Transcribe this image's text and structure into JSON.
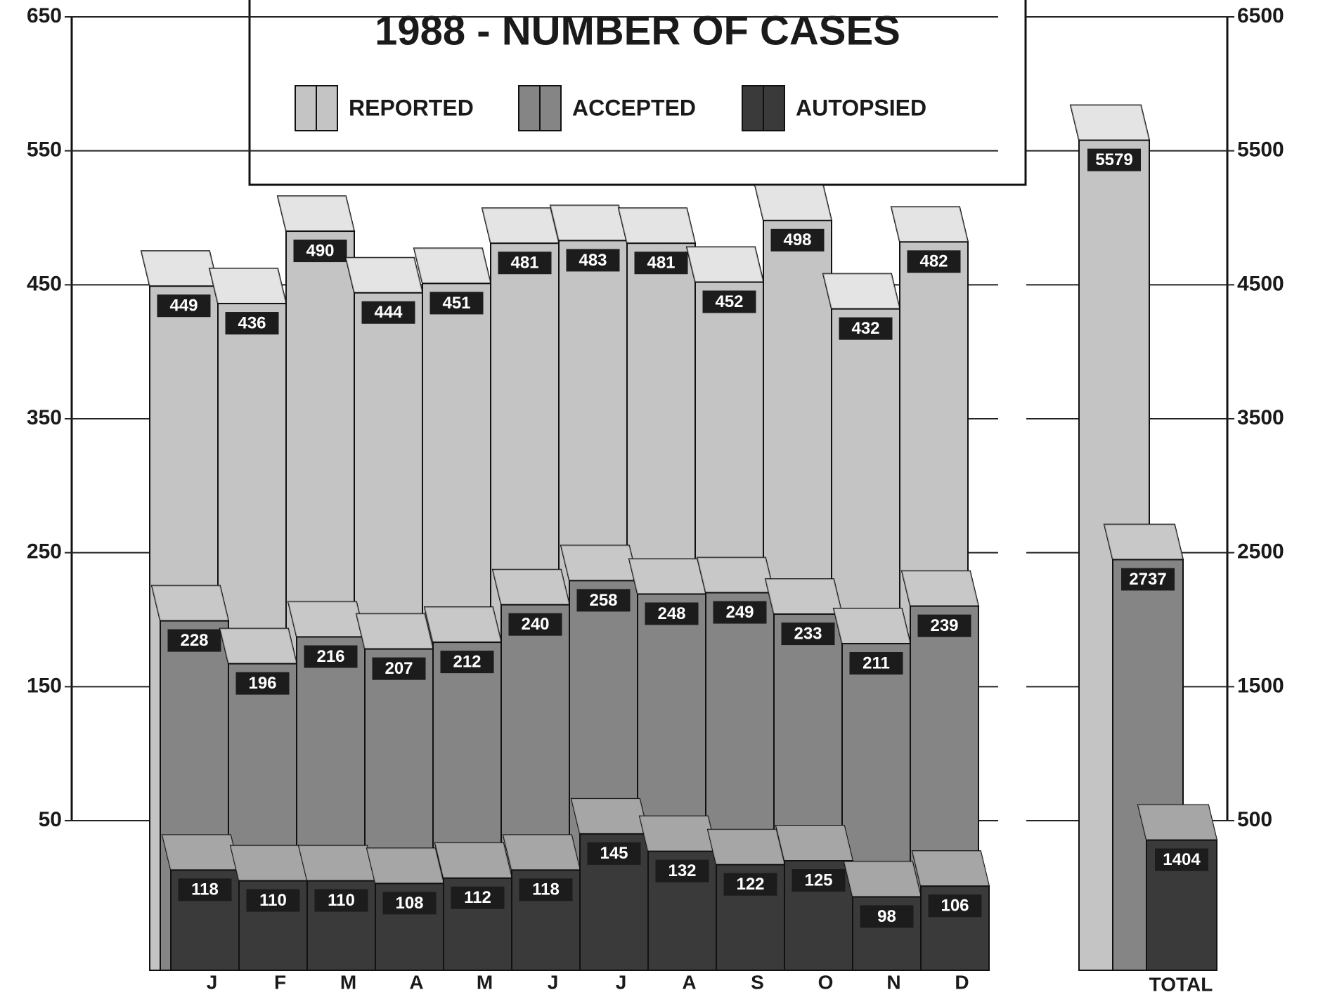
{
  "chart_data": {
    "type": "bar3d",
    "title": "1988 - NUMBER OF CASES",
    "categories": [
      "J",
      "F",
      "M",
      "A",
      "M",
      "J",
      "J",
      "A",
      "S",
      "O",
      "N",
      "D"
    ],
    "total_label": "TOTAL",
    "series": [
      {
        "name": "REPORTED",
        "color": "#c4c4c4",
        "values": [
          449,
          436,
          490,
          444,
          451,
          481,
          483,
          481,
          452,
          498,
          432,
          482
        ],
        "total": 5579
      },
      {
        "name": "ACCEPTED",
        "color": "#858585",
        "values": [
          228,
          196,
          216,
          207,
          212,
          240,
          258,
          248,
          249,
          233,
          211,
          239
        ],
        "total": 2737
      },
      {
        "name": "AUTOPSIED",
        "color": "#3a3a3a",
        "values": [
          118,
          110,
          110,
          108,
          112,
          118,
          145,
          132,
          122,
          125,
          98,
          106
        ],
        "total": 1404
      }
    ],
    "ylim": [
      50,
      650
    ],
    "yticks": [
      50,
      150,
      250,
      350,
      450,
      550,
      650
    ],
    "y2lim": [
      500,
      6500
    ],
    "y2ticks": [
      500,
      1500,
      2500,
      3500,
      4500,
      5500,
      6500
    ],
    "grid": true
  }
}
